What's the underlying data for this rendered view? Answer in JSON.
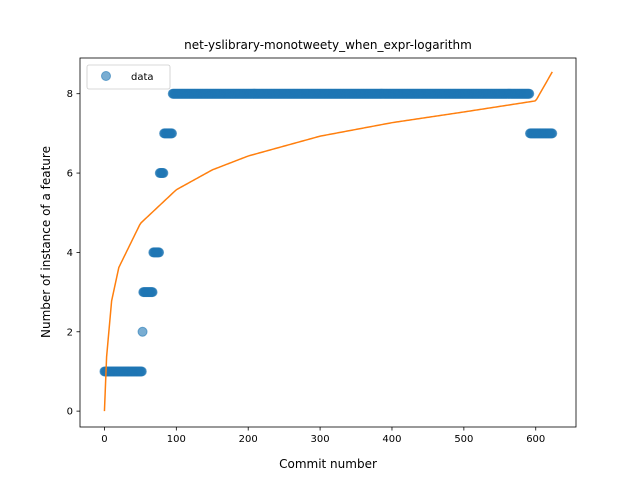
{
  "chart_data": {
    "type": "scatter",
    "title": "net-yslibrary-monotweety_when_expr-logarithm",
    "xlabel": "Commit number",
    "ylabel": "Number of instance of a feature",
    "xlim": [
      -34,
      656
    ],
    "ylim": [
      -0.4,
      8.9
    ],
    "xticks": [
      0,
      100,
      200,
      300,
      400,
      500,
      600
    ],
    "yticks": [
      0,
      2,
      4,
      6,
      8
    ],
    "grid": false,
    "legend": {
      "placement": "top-left",
      "entries": [
        "data"
      ]
    },
    "series": [
      {
        "name": "data",
        "kind": "points",
        "color": "#1f77b4",
        "runs": [
          {
            "x_start": 0,
            "x_end": 52,
            "y": 1
          },
          {
            "x_start": 53,
            "x_end": 53,
            "y": 2
          },
          {
            "x_start": 54,
            "x_end": 67,
            "y": 3
          },
          {
            "x_start": 68,
            "x_end": 76,
            "y": 4
          },
          {
            "x_start": 77,
            "x_end": 82,
            "y": 6
          },
          {
            "x_start": 83,
            "x_end": 94,
            "y": 7
          },
          {
            "x_start": 95,
            "x_end": 591,
            "y": 8
          },
          {
            "x_start": 592,
            "x_end": 623,
            "y": 7
          }
        ]
      },
      {
        "kind": "fit",
        "model": "logarithmic",
        "color": "#ff7f0e",
        "x_range": [
          0,
          623
        ],
        "points": [
          [
            0,
            0.0
          ],
          [
            3,
            1.37
          ],
          [
            10,
            2.78
          ],
          [
            20,
            3.62
          ],
          [
            50,
            4.73
          ],
          [
            100,
            5.58
          ],
          [
            150,
            6.08
          ],
          [
            200,
            6.43
          ],
          [
            300,
            6.93
          ],
          [
            400,
            7.27
          ],
          [
            500,
            7.54
          ],
          [
            600,
            7.82
          ],
          [
            623,
            8.55
          ]
        ]
      }
    ]
  }
}
